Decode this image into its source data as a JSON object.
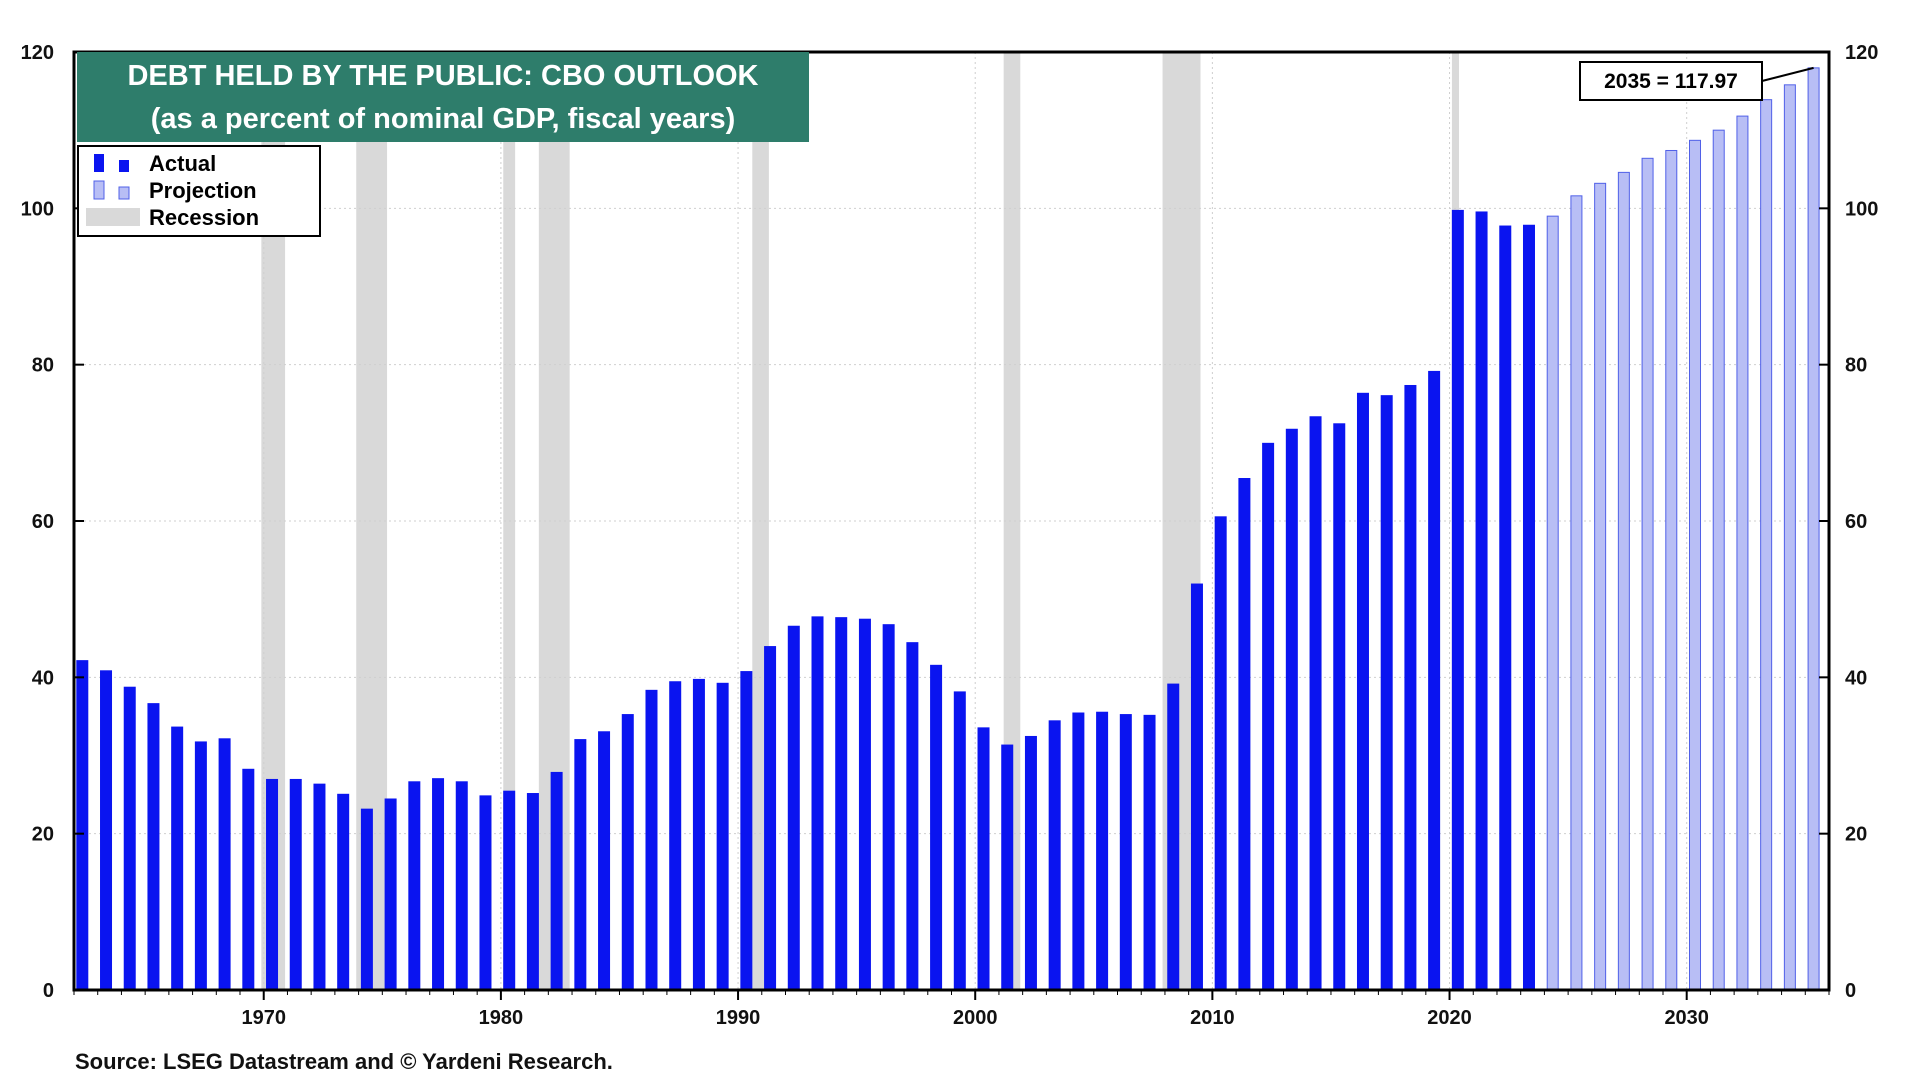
{
  "chart_data": {
    "type": "bar",
    "title": "DEBT HELD BY THE PUBLIC: CBO OUTLOOK",
    "subtitle": "(as a percent of nominal GDP, fiscal years)",
    "source": "Source: LSEG Datastream and © Yardeni Research.",
    "colors": {
      "actual": "#0a14f0",
      "projection_fill": "#b8bef5",
      "projection_stroke": "#5060e8",
      "recession": "#d9d9d9",
      "title_bg": "#2e7d6b"
    },
    "legend": {
      "placement": "top-left",
      "items": [
        {
          "label": "Actual",
          "kind": "actual"
        },
        {
          "label": "Projection",
          "kind": "projection"
        },
        {
          "label": "Recession",
          "kind": "recession"
        }
      ]
    },
    "annotation": {
      "text": "2035 = 117.97",
      "year": 2035,
      "value": 117.97
    },
    "ylim": [
      0,
      120
    ],
    "yticks": [
      0,
      20,
      40,
      60,
      80,
      100,
      120
    ],
    "xlim": [
      1962,
      2036
    ],
    "xticks": [
      1970,
      1980,
      1990,
      2000,
      2010,
      2020,
      2030
    ],
    "grid": true,
    "recessions": [
      [
        1969.9,
        1970.9
      ],
      [
        1973.9,
        1975.2
      ],
      [
        1980.1,
        1980.6
      ],
      [
        1981.6,
        1982.9
      ],
      [
        1990.6,
        1991.3
      ],
      [
        2001.2,
        2001.9
      ],
      [
        2007.9,
        2009.5
      ],
      [
        2020.1,
        2020.4
      ]
    ],
    "series": [
      {
        "name": "Actual",
        "x": [
          1962,
          1963,
          1964,
          1965,
          1966,
          1967,
          1968,
          1969,
          1970,
          1971,
          1972,
          1973,
          1974,
          1975,
          1976,
          1977,
          1978,
          1979,
          1980,
          1981,
          1982,
          1983,
          1984,
          1985,
          1986,
          1987,
          1988,
          1989,
          1990,
          1991,
          1992,
          1993,
          1994,
          1995,
          1996,
          1997,
          1998,
          1999,
          2000,
          2001,
          2002,
          2003,
          2004,
          2005,
          2006,
          2007,
          2008,
          2009,
          2010,
          2011,
          2012,
          2013,
          2014,
          2015,
          2016,
          2017,
          2018,
          2019,
          2020,
          2021,
          2022,
          2023
        ],
        "values": [
          42.2,
          40.9,
          38.8,
          36.7,
          33.7,
          31.8,
          32.2,
          28.3,
          27.0,
          27.0,
          26.4,
          25.1,
          23.2,
          24.5,
          26.7,
          27.1,
          26.7,
          24.9,
          25.5,
          25.2,
          27.9,
          32.1,
          33.1,
          35.3,
          38.4,
          39.5,
          39.8,
          39.3,
          40.8,
          44.0,
          46.6,
          47.8,
          47.7,
          47.5,
          46.8,
          44.5,
          41.6,
          38.2,
          33.6,
          31.4,
          32.5,
          34.5,
          35.5,
          35.6,
          35.3,
          35.2,
          39.2,
          52.0,
          60.6,
          65.5,
          70.0,
          71.8,
          73.4,
          72.5,
          76.4,
          76.1,
          77.4,
          79.2,
          99.8,
          99.6,
          97.8,
          97.9
        ]
      },
      {
        "name": "Projection",
        "x": [
          2024,
          2025,
          2026,
          2027,
          2028,
          2029,
          2030,
          2031,
          2032,
          2033,
          2034,
          2035
        ],
        "values": [
          99.0,
          101.6,
          103.2,
          104.6,
          106.4,
          107.4,
          108.7,
          110.0,
          111.8,
          113.9,
          115.8,
          117.97
        ]
      }
    ]
  }
}
